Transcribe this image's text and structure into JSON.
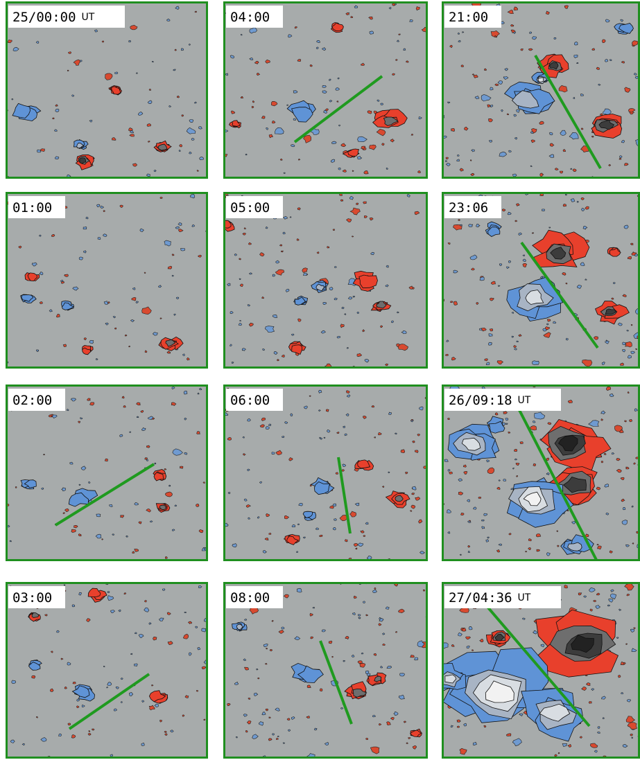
{
  "panels": [
    {
      "time": "25/00:00",
      "unit": "UT"
    },
    {
      "time": "01:00"
    },
    {
      "time": "02:00"
    },
    {
      "time": "03:00"
    },
    {
      "time": "04:00"
    },
    {
      "time": "05:00"
    },
    {
      "time": "06:00"
    },
    {
      "time": "08:00"
    },
    {
      "time": "21:00"
    },
    {
      "time": "23:06"
    },
    {
      "time": "26/09:18",
      "unit": "UT"
    },
    {
      "time": "27/04:36",
      "unit": "UT"
    }
  ]
}
